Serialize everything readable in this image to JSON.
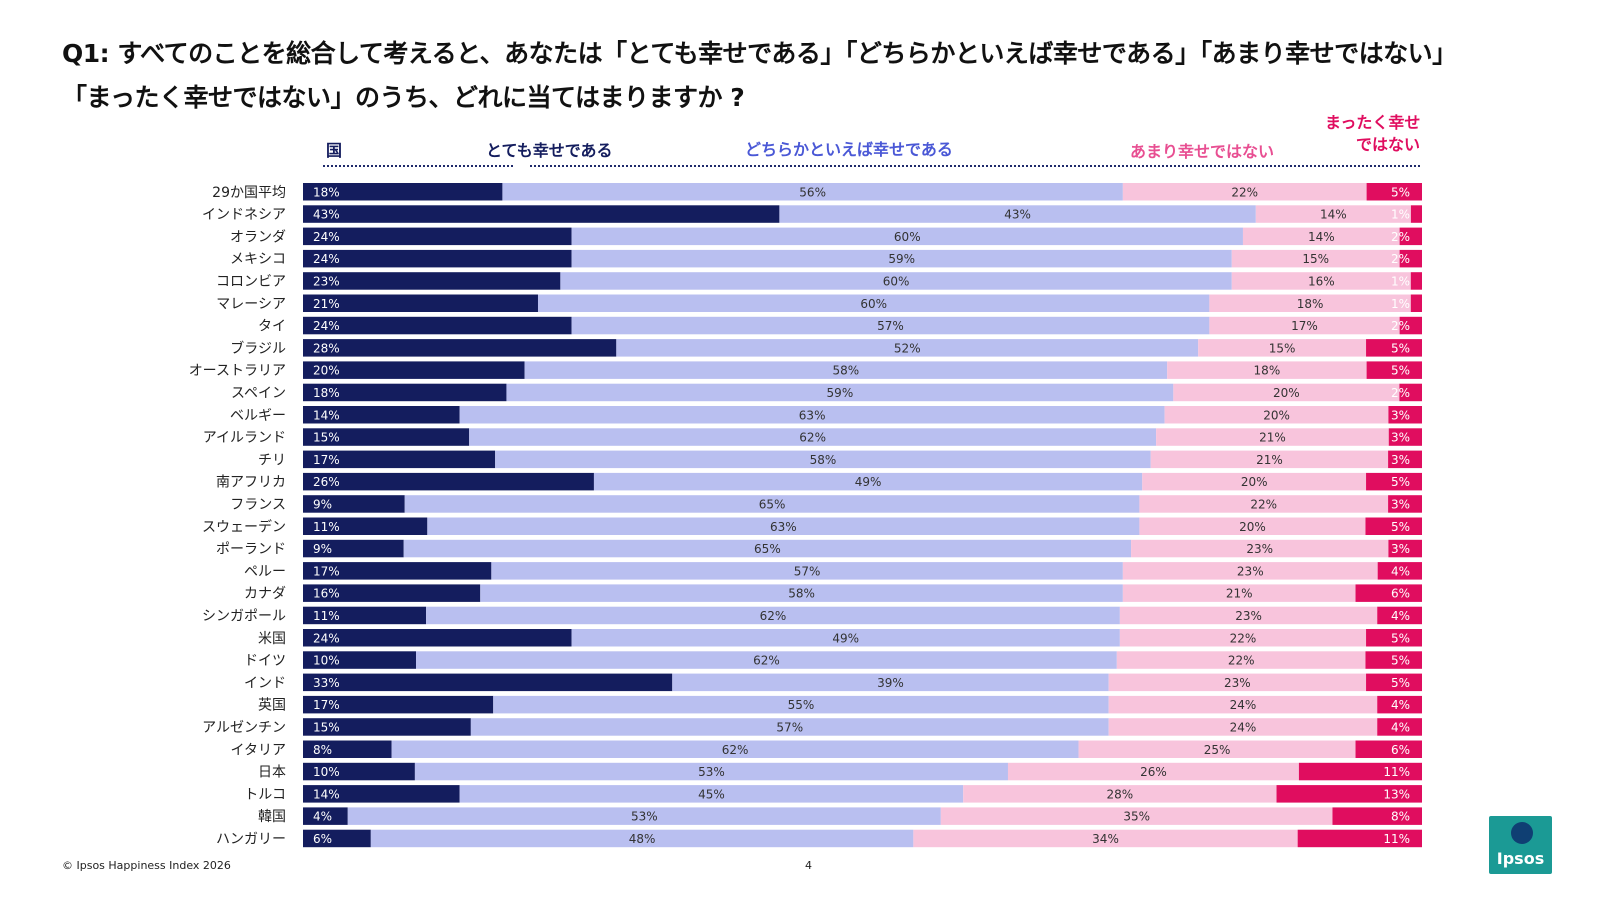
{
  "title_line1": "Q1: すべてのことを総合して考えると、あなたは「とても幸せである」「どちらかといえば幸せである」「あまり幸せではない」",
  "title_line2": "「まったく幸せではない」のうち、どれに当てはまりますか ?",
  "headers": {
    "country": "国",
    "very_happy": "とても幸せである",
    "rather_happy": "どちらかといえば幸せである",
    "not_very_happy": "あまり幸せではない",
    "not_at_all_line1": "まったく幸せ",
    "not_at_all_line2": "ではない"
  },
  "colors": {
    "very_happy": "#141d5e",
    "rather_happy": "#b9bff0",
    "not_very_happy": "#f8c4dc",
    "not_at_all": "#e00d5f",
    "hdr_very": "#141d5e",
    "hdr_rather": "#4a58d6",
    "hdr_not_very": "#e84f92",
    "hdr_not_at_all": "#e00d5f"
  },
  "chart_data": {
    "type": "bar",
    "orientation": "horizontal",
    "stacked": "100%",
    "xlim": [
      0,
      100
    ],
    "categories": [
      "29か国平均",
      "インドネシア",
      "オランダ",
      "メキシコ",
      "コロンビア",
      "マレーシア",
      "タイ",
      "ブラジル",
      "オーストラリア",
      "スペイン",
      "ベルギー",
      "アイルランド",
      "チリ",
      "南アフリカ",
      "フランス",
      "スウェーデン",
      "ポーランド",
      "ペルー",
      "カナダ",
      "シンガポール",
      "米国",
      "ドイツ",
      "インド",
      "英国",
      "アルゼンチン",
      "イタリア",
      "日本",
      "トルコ",
      "韓国",
      "ハンガリー"
    ],
    "series": [
      {
        "name": "とても幸せである",
        "values": [
          18,
          43,
          24,
          24,
          23,
          21,
          24,
          28,
          20,
          18,
          14,
          15,
          17,
          26,
          9,
          11,
          9,
          17,
          16,
          11,
          24,
          10,
          33,
          17,
          15,
          8,
          10,
          14,
          4,
          6
        ]
      },
      {
        "name": "どちらかといえば幸せである",
        "values": [
          56,
          43,
          60,
          59,
          60,
          60,
          57,
          52,
          58,
          59,
          63,
          62,
          58,
          49,
          65,
          63,
          65,
          57,
          58,
          62,
          49,
          62,
          39,
          55,
          57,
          62,
          53,
          45,
          53,
          48
        ]
      },
      {
        "name": "あまり幸せではない",
        "values": [
          22,
          14,
          14,
          15,
          16,
          18,
          17,
          15,
          18,
          20,
          20,
          21,
          21,
          20,
          22,
          20,
          23,
          23,
          21,
          23,
          22,
          22,
          23,
          24,
          24,
          25,
          26,
          28,
          35,
          34
        ]
      },
      {
        "name": "まったく幸せではない",
        "values": [
          5,
          1,
          2,
          2,
          1,
          1,
          2,
          5,
          5,
          2,
          3,
          3,
          3,
          5,
          3,
          5,
          3,
          4,
          6,
          4,
          5,
          5,
          5,
          4,
          4,
          6,
          11,
          13,
          8,
          11
        ]
      }
    ],
    "value_suffix": "%"
  },
  "footer": "© Ipsos Happiness Index 2026",
  "page_number": "4",
  "logo_text": "Ipsos"
}
